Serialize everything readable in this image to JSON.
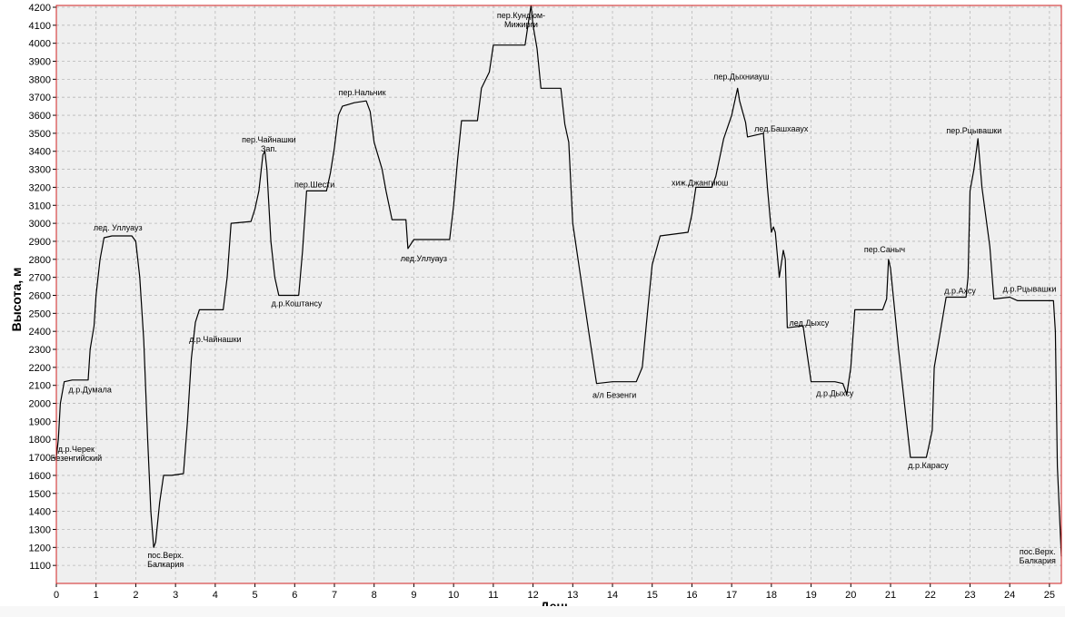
{
  "chart_data": {
    "type": "line",
    "title": "",
    "xlabel": "День",
    "ylabel": "Высота, м",
    "xlim": [
      0,
      25.3
    ],
    "ylim": [
      1000,
      4210
    ],
    "x_ticks": [
      0,
      1,
      2,
      3,
      4,
      5,
      6,
      7,
      8,
      9,
      10,
      11,
      12,
      13,
      14,
      15,
      16,
      17,
      18,
      19,
      20,
      21,
      22,
      23,
      24,
      25
    ],
    "y_ticks": [
      1100,
      1200,
      1300,
      1400,
      1500,
      1600,
      1700,
      1800,
      1900,
      2000,
      2100,
      2200,
      2300,
      2400,
      2500,
      2600,
      2700,
      2800,
      2900,
      3000,
      3100,
      3200,
      3300,
      3400,
      3500,
      3600,
      3700,
      3800,
      3900,
      4000,
      4100,
      4200
    ],
    "grid": true,
    "series": [
      {
        "points": [
          [
            0,
            1700
          ],
          [
            0.05,
            1800
          ],
          [
            0.1,
            2000
          ],
          [
            0.2,
            2120
          ],
          [
            0.4,
            2130
          ],
          [
            0.8,
            2130
          ],
          [
            0.85,
            2300
          ],
          [
            0.95,
            2430
          ],
          [
            1.0,
            2600
          ],
          [
            1.1,
            2800
          ],
          [
            1.2,
            2920
          ],
          [
            1.4,
            2930
          ],
          [
            1.9,
            2930
          ],
          [
            2.0,
            2900
          ],
          [
            2.1,
            2700
          ],
          [
            2.2,
            2350
          ],
          [
            2.3,
            1800
          ],
          [
            2.38,
            1400
          ],
          [
            2.45,
            1200
          ],
          [
            2.5,
            1230
          ],
          [
            2.6,
            1450
          ],
          [
            2.7,
            1600
          ],
          [
            2.9,
            1600
          ],
          [
            3.2,
            1610
          ],
          [
            3.3,
            1900
          ],
          [
            3.4,
            2250
          ],
          [
            3.5,
            2450
          ],
          [
            3.6,
            2520
          ],
          [
            4.2,
            2520
          ],
          [
            4.3,
            2700
          ],
          [
            4.4,
            3000
          ],
          [
            4.9,
            3010
          ],
          [
            5.0,
            3080
          ],
          [
            5.1,
            3180
          ],
          [
            5.2,
            3380
          ],
          [
            5.25,
            3400
          ],
          [
            5.3,
            3300
          ],
          [
            5.4,
            2900
          ],
          [
            5.5,
            2700
          ],
          [
            5.6,
            2600
          ],
          [
            6.1,
            2600
          ],
          [
            6.2,
            2850
          ],
          [
            6.3,
            3180
          ],
          [
            6.8,
            3180
          ],
          [
            6.9,
            3280
          ],
          [
            7.0,
            3420
          ],
          [
            7.1,
            3600
          ],
          [
            7.2,
            3650
          ],
          [
            7.5,
            3670
          ],
          [
            7.8,
            3680
          ],
          [
            7.9,
            3620
          ],
          [
            8.0,
            3450
          ],
          [
            8.2,
            3300
          ],
          [
            8.3,
            3180
          ],
          [
            8.45,
            3020
          ],
          [
            8.8,
            3020
          ],
          [
            8.85,
            2860
          ],
          [
            9.0,
            2910
          ],
          [
            9.5,
            2910
          ],
          [
            9.9,
            2910
          ],
          [
            10.0,
            3100
          ],
          [
            10.1,
            3350
          ],
          [
            10.2,
            3570
          ],
          [
            10.6,
            3570
          ],
          [
            10.7,
            3750
          ],
          [
            10.9,
            3840
          ],
          [
            11.0,
            3990
          ],
          [
            11.8,
            3990
          ],
          [
            11.9,
            4140
          ],
          [
            11.95,
            4210
          ],
          [
            12.0,
            4100
          ],
          [
            12.1,
            3970
          ],
          [
            12.2,
            3750
          ],
          [
            12.7,
            3750
          ],
          [
            12.8,
            3550
          ],
          [
            12.9,
            3450
          ],
          [
            13.0,
            3000
          ],
          [
            13.2,
            2700
          ],
          [
            13.4,
            2400
          ],
          [
            13.6,
            2110
          ],
          [
            14.0,
            2120
          ],
          [
            14.6,
            2120
          ],
          [
            14.75,
            2200
          ],
          [
            14.9,
            2550
          ],
          [
            15.0,
            2770
          ],
          [
            15.2,
            2930
          ],
          [
            15.9,
            2950
          ],
          [
            16.0,
            3050
          ],
          [
            16.1,
            3200
          ],
          [
            16.5,
            3200
          ],
          [
            16.6,
            3260
          ],
          [
            16.8,
            3470
          ],
          [
            17.0,
            3600
          ],
          [
            17.1,
            3700
          ],
          [
            17.15,
            3750
          ],
          [
            17.2,
            3680
          ],
          [
            17.35,
            3560
          ],
          [
            17.4,
            3480
          ],
          [
            17.8,
            3500
          ],
          [
            17.9,
            3200
          ],
          [
            18.0,
            2950
          ],
          [
            18.05,
            2980
          ],
          [
            18.1,
            2950
          ],
          [
            18.2,
            2700
          ],
          [
            18.3,
            2850
          ],
          [
            18.35,
            2800
          ],
          [
            18.4,
            2420
          ],
          [
            18.8,
            2430
          ],
          [
            19.0,
            2120
          ],
          [
            19.6,
            2120
          ],
          [
            19.8,
            2110
          ],
          [
            19.9,
            2050
          ],
          [
            20.0,
            2200
          ],
          [
            20.1,
            2520
          ],
          [
            20.8,
            2520
          ],
          [
            20.9,
            2580
          ],
          [
            20.95,
            2800
          ],
          [
            21.0,
            2750
          ],
          [
            21.2,
            2300
          ],
          [
            21.4,
            1900
          ],
          [
            21.5,
            1700
          ],
          [
            21.9,
            1700
          ],
          [
            21.95,
            1750
          ],
          [
            22.05,
            1850
          ],
          [
            22.1,
            2200
          ],
          [
            22.2,
            2330
          ],
          [
            22.4,
            2590
          ],
          [
            22.9,
            2590
          ],
          [
            22.95,
            2700
          ],
          [
            23.0,
            3180
          ],
          [
            23.1,
            3300
          ],
          [
            23.2,
            3470
          ],
          [
            23.3,
            3200
          ],
          [
            23.5,
            2870
          ],
          [
            23.6,
            2580
          ],
          [
            24.0,
            2590
          ],
          [
            24.2,
            2570
          ],
          [
            25.1,
            2570
          ],
          [
            25.15,
            2400
          ],
          [
            25.2,
            1650
          ],
          [
            25.25,
            1400
          ],
          [
            25.3,
            1150
          ]
        ]
      }
    ],
    "annotations": [
      {
        "x": 0.5,
        "y": 1730,
        "lines": [
          "д.р.Черек",
          "Безенгийский"
        ]
      },
      {
        "x": 0.85,
        "y": 2060,
        "lines": [
          "д.р.Думала"
        ]
      },
      {
        "x": 1.55,
        "y": 2960,
        "lines": [
          "лед. Уллуауз"
        ]
      },
      {
        "x": 2.75,
        "y": 1140,
        "lines": [
          "пос.Верх.",
          "Балкария"
        ]
      },
      {
        "x": 4.0,
        "y": 2340,
        "lines": [
          "д.р.Чайнашки"
        ]
      },
      {
        "x": 5.35,
        "y": 3450,
        "lines": [
          "пер.Чайнашки",
          "Зап."
        ]
      },
      {
        "x": 6.05,
        "y": 2540,
        "lines": [
          "д.р.Коштансу"
        ]
      },
      {
        "x": 6.5,
        "y": 3200,
        "lines": [
          "пер.Шести"
        ]
      },
      {
        "x": 7.7,
        "y": 3710,
        "lines": [
          "пер.Нальчик"
        ]
      },
      {
        "x": 9.25,
        "y": 2790,
        "lines": [
          "лед.Уллуауз"
        ]
      },
      {
        "x": 11.7,
        "y": 4140,
        "lines": [
          "пер.Кундюм-",
          "Мижирги"
        ]
      },
      {
        "x": 14.05,
        "y": 2030,
        "lines": [
          "а/л Безенги"
        ]
      },
      {
        "x": 16.2,
        "y": 3210,
        "lines": [
          "хиж.Джангиюш"
        ]
      },
      {
        "x": 17.25,
        "y": 3800,
        "lines": [
          "пер.Дыхниауш"
        ]
      },
      {
        "x": 18.25,
        "y": 3510,
        "lines": [
          "лед.Башхааух"
        ]
      },
      {
        "x": 18.95,
        "y": 2430,
        "lines": [
          "лед.Дыхсу"
        ]
      },
      {
        "x": 19.6,
        "y": 2040,
        "lines": [
          "д.р.Дыхсу"
        ]
      },
      {
        "x": 20.85,
        "y": 2840,
        "lines": [
          "пер.Саныч"
        ]
      },
      {
        "x": 21.95,
        "y": 1640,
        "lines": [
          "д.р.Карасу"
        ]
      },
      {
        "x": 22.75,
        "y": 2610,
        "lines": [
          "д.р.Ахсу"
        ]
      },
      {
        "x": 23.1,
        "y": 3500,
        "lines": [
          "пер.Рцывашки"
        ]
      },
      {
        "x": 24.5,
        "y": 2620,
        "lines": [
          "д.р.Рцывашки"
        ]
      },
      {
        "x": 24.7,
        "y": 1160,
        "lines": [
          "пос.Верх.",
          "Балкария"
        ]
      }
    ],
    "colors": {
      "line": "#000000",
      "plot_background": "#efefef",
      "grid": "#b8b8b8",
      "frame": "#d02020"
    }
  }
}
